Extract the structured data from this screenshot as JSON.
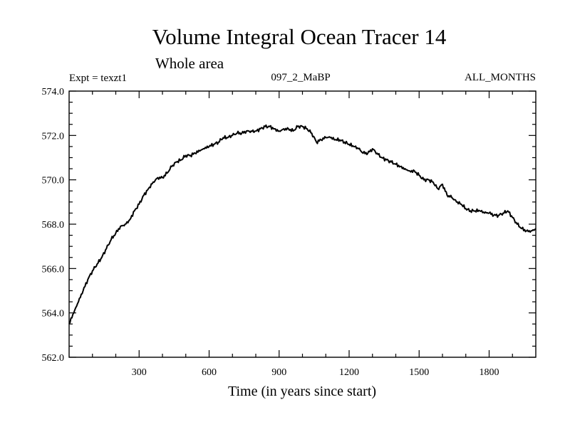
{
  "chart_data": {
    "type": "line",
    "title": "Volume Integral Ocean Tracer 14",
    "subtitle": "Whole area",
    "annotations": {
      "left": "Expt = texzt1",
      "center": "097_2_MaBP",
      "right": "ALL_MONTHS"
    },
    "xlabel": "Time (in years since start)",
    "ylabel": "",
    "xlim": [
      0,
      2000
    ],
    "ylim": [
      562.0,
      574.0
    ],
    "x_ticks": [
      300,
      600,
      900,
      1200,
      1500,
      1800
    ],
    "x_tick_labels": [
      "300",
      "600",
      "900",
      "1200",
      "1500",
      "1800"
    ],
    "y_ticks": [
      562,
      564,
      566,
      568,
      570,
      572,
      574
    ],
    "y_tick_labels": [
      "562.0",
      "564.0",
      "566.0",
      "568.0",
      "570.0",
      "572.0",
      "574.0"
    ],
    "x_minor_step": 100,
    "y_minor_step": 0.5,
    "grid": false,
    "series": [
      {
        "x": [
          0,
          20,
          40,
          60,
          80,
          100,
          120,
          140,
          160,
          180,
          200,
          220,
          240,
          260,
          280,
          300,
          320,
          340,
          360,
          380,
          400,
          420,
          440,
          460,
          480,
          500,
          520,
          540,
          560,
          580,
          600,
          620,
          640,
          660,
          680,
          700,
          720,
          740,
          760,
          780,
          800,
          820,
          840,
          860,
          880,
          900,
          920,
          940,
          960,
          980,
          1000,
          1020,
          1040,
          1060,
          1080,
          1100,
          1120,
          1140,
          1160,
          1180,
          1200,
          1220,
          1240,
          1260,
          1280,
          1300,
          1320,
          1340,
          1360,
          1380,
          1400,
          1420,
          1440,
          1460,
          1480,
          1500,
          1520,
          1540,
          1560,
          1580,
          1600,
          1620,
          1640,
          1660,
          1680,
          1700,
          1720,
          1740,
          1760,
          1780,
          1800,
          1820,
          1840,
          1860,
          1880,
          1900,
          1920,
          1940,
          1960,
          1980,
          2000
        ],
        "values": [
          563.5,
          564.0,
          564.5,
          565.0,
          565.5,
          565.9,
          566.2,
          566.5,
          566.9,
          567.3,
          567.6,
          567.9,
          568.0,
          568.2,
          568.6,
          568.9,
          569.3,
          569.6,
          569.9,
          570.1,
          570.1,
          570.3,
          570.6,
          570.8,
          570.9,
          571.1,
          571.1,
          571.2,
          571.3,
          571.4,
          571.5,
          571.6,
          571.7,
          571.9,
          571.9,
          572.0,
          572.1,
          572.1,
          572.2,
          572.2,
          572.2,
          572.3,
          572.4,
          572.4,
          572.3,
          572.2,
          572.3,
          572.3,
          572.2,
          572.4,
          572.4,
          572.3,
          572.1,
          571.7,
          571.8,
          571.9,
          571.9,
          571.8,
          571.8,
          571.7,
          571.6,
          571.5,
          571.4,
          571.2,
          571.2,
          571.4,
          571.2,
          571.0,
          570.9,
          570.8,
          570.7,
          570.6,
          570.5,
          570.4,
          570.4,
          570.2,
          570.0,
          570.0,
          569.9,
          569.6,
          569.8,
          569.3,
          569.2,
          569.0,
          568.9,
          568.7,
          568.6,
          568.6,
          568.6,
          568.5,
          568.5,
          568.4,
          568.4,
          568.5,
          568.6,
          568.3,
          568.0,
          567.8,
          567.7,
          567.7,
          567.8
        ]
      }
    ]
  }
}
